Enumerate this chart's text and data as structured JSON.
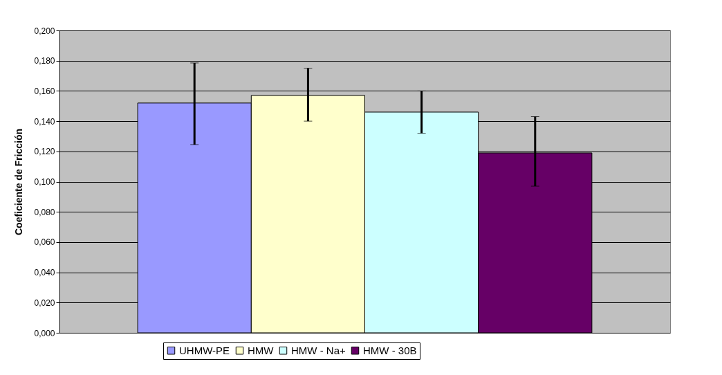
{
  "chart_data": {
    "type": "bar",
    "ylabel": "Coeficiente de Fricción",
    "categories": [
      null
    ],
    "series": [
      {
        "name": "UHMW-PE",
        "color": "#9999ff",
        "values": [
          0.152
        ],
        "errors": [
          [
            0.1245,
            0.1785
          ]
        ]
      },
      {
        "name": "HMW",
        "color": "#ffffcc",
        "values": [
          0.157
        ],
        "errors": [
          [
            0.14,
            0.175
          ]
        ]
      },
      {
        "name": "HMW - Na+",
        "color": "#ccffff",
        "values": [
          0.146
        ],
        "errors": [
          [
            0.132,
            0.16
          ]
        ]
      },
      {
        "name": "HMW - 30B",
        "color": "#660066",
        "values": [
          0.119
        ],
        "errors": [
          [
            0.097,
            0.143
          ]
        ]
      }
    ],
    "ylim": [
      0,
      0.2
    ],
    "yticks": [
      {
        "value": 0,
        "label": "0,000"
      },
      {
        "value": 0.02,
        "label": "0,020"
      },
      {
        "value": 0.04,
        "label": "0,040"
      },
      {
        "value": 0.06,
        "label": "0,060"
      },
      {
        "value": 0.08,
        "label": "0,080"
      },
      {
        "value": 0.1,
        "label": "0,100"
      },
      {
        "value": 0.12,
        "label": "0,120"
      },
      {
        "value": 0.14,
        "label": "0,140"
      },
      {
        "value": 0.16,
        "label": "0,160"
      },
      {
        "value": 0.18,
        "label": "0,180"
      },
      {
        "value": 0.2,
        "label": "0,200"
      }
    ],
    "grid": "y",
    "legend": "bottom"
  }
}
